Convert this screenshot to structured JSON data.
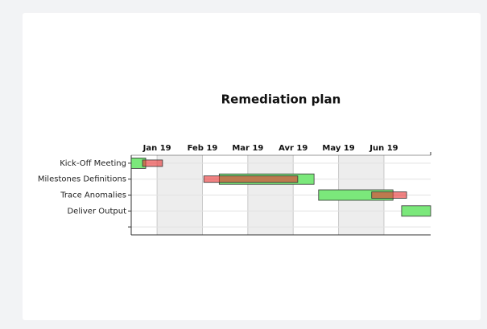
{
  "chart_data": {
    "type": "gantt",
    "title": "Remediation plan",
    "categories": [
      "Kick-Off Meeting",
      "Milestones Definitions",
      "Trace Anomalies",
      "Deliver Output",
      null
    ],
    "xlim": [
      -0.57,
      6.03
    ],
    "xticks": [
      {
        "value": 0,
        "label": "Jan 19"
      },
      {
        "value": 1,
        "label": "Feb 19"
      },
      {
        "value": 2,
        "label": "Mar 19"
      },
      {
        "value": 3,
        "label": "Avr 19"
      },
      {
        "value": 4,
        "label": "May 19"
      },
      {
        "value": 5,
        "label": "Jun 19"
      }
    ],
    "series": [
      {
        "color": "#7be87b",
        "values": [
          [
            -0.57,
            -0.25
          ],
          [
            1.37,
            3.46
          ],
          [
            3.56,
            5.2
          ],
          [
            5.39,
            6.03
          ],
          null
        ]
      },
      {
        "color": "#e83030",
        "values": [
          [
            -0.32,
            0.12
          ],
          [
            1.03,
            3.1
          ],
          [
            4.73,
            5.5
          ],
          null,
          null
        ]
      }
    ]
  }
}
